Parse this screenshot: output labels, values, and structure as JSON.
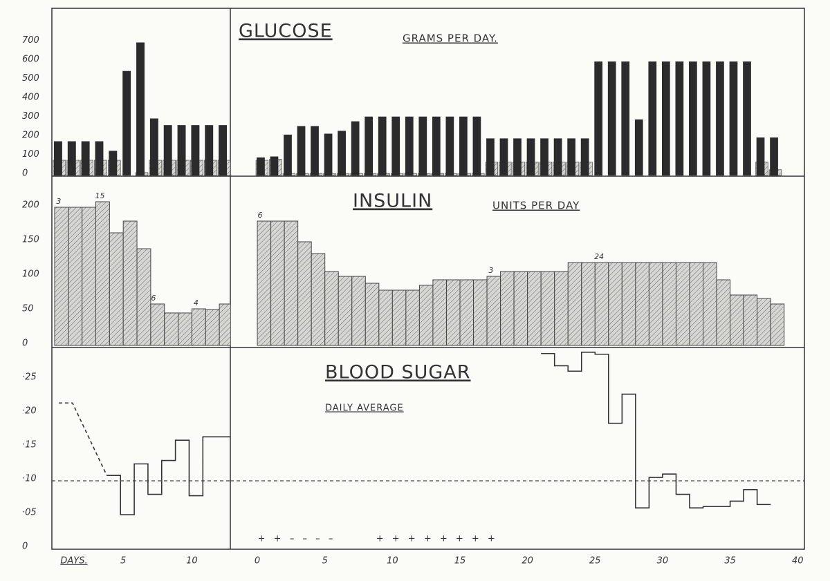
{
  "chart_data": [
    {
      "type": "bar",
      "xlim": [
        -0.2,
        12.8
      ],
      "ylim": [
        0,
        880
      ],
      "yticks": [
        0,
        100,
        200,
        300,
        400,
        500,
        600,
        700
      ],
      "series": [
        {
          "style": "hatched",
          "color": "#555555",
          "x": [
            0,
            1,
            2,
            3,
            4,
            5,
            6,
            7,
            8,
            9,
            10,
            11,
            12
          ],
          "values": [
            80,
            80,
            80,
            80,
            80,
            0,
            15,
            80,
            80,
            80,
            80,
            80,
            80
          ]
        },
        {
          "style": "solid",
          "color": "#2b2b2b",
          "x": [
            0,
            1,
            2,
            3,
            4,
            5,
            6,
            7,
            8,
            9,
            10,
            11,
            12
          ],
          "values": [
            180,
            180,
            180,
            180,
            130,
            550,
            700,
            300,
            265,
            265,
            265,
            265,
            265
          ]
        }
      ]
    },
    {
      "type": "bar",
      "title": "GLUCOSE",
      "subtitle": "GRAMS PER DAY.",
      "xlim": [
        -2,
        40.5
      ],
      "ylim": [
        0,
        880
      ],
      "series": [
        {
          "style": "hatched",
          "color": "#555555",
          "x": [
            0,
            1,
            2,
            3,
            4,
            5,
            6,
            7,
            8,
            9,
            10,
            11,
            12,
            13,
            14,
            15,
            16,
            17,
            18,
            19,
            20,
            21,
            22,
            23,
            24,
            25,
            26,
            27,
            28,
            29,
            30,
            31,
            32,
            33,
            34,
            35,
            36,
            37,
            38
          ],
          "values": [
            80,
            85,
            10,
            10,
            10,
            10,
            10,
            10,
            10,
            10,
            10,
            10,
            10,
            10,
            10,
            10,
            10,
            70,
            70,
            70,
            70,
            70,
            70,
            70,
            70,
            0,
            0,
            0,
            0,
            0,
            0,
            0,
            0,
            0,
            0,
            0,
            0,
            70,
            30
          ]
        },
        {
          "style": "solid",
          "color": "#2b2b2b",
          "x": [
            0,
            1,
            2,
            3,
            4,
            5,
            6,
            7,
            8,
            9,
            10,
            11,
            12,
            13,
            14,
            15,
            16,
            17,
            18,
            19,
            20,
            21,
            22,
            23,
            24,
            25,
            26,
            27,
            28,
            29,
            30,
            31,
            32,
            33,
            34,
            35,
            36,
            37,
            38
          ],
          "values": [
            95,
            100,
            215,
            260,
            260,
            220,
            235,
            285,
            310,
            310,
            310,
            310,
            310,
            310,
            310,
            310,
            310,
            195,
            195,
            195,
            195,
            195,
            195,
            195,
            195,
            600,
            600,
            600,
            295,
            600,
            600,
            600,
            600,
            600,
            600,
            600,
            600,
            200,
            200
          ]
        }
      ]
    },
    {
      "type": "histogram",
      "xlim": [
        -0.2,
        12.8
      ],
      "ylim": [
        0,
        245
      ],
      "yticks": [
        0,
        50,
        100,
        150,
        200
      ],
      "color": "#444444",
      "bins": [
        0,
        1,
        2,
        3,
        4,
        5,
        6,
        7,
        8,
        9,
        10,
        11,
        12,
        13
      ],
      "values": [
        200,
        200,
        200,
        208,
        163,
        180,
        140,
        60,
        47,
        47,
        53,
        52,
        60
      ],
      "annotations": [
        {
          "text": "3",
          "x": 0.3
        },
        {
          "text": "15",
          "x": 3.3
        },
        {
          "text": "6",
          "x": 7.2
        },
        {
          "text": "4",
          "x": 10.3
        }
      ]
    },
    {
      "type": "histogram",
      "title": "INSULIN",
      "subtitle": "UNITS PER DAY",
      "xlim": [
        -2,
        40.5
      ],
      "ylim": [
        0,
        245
      ],
      "color": "#444444",
      "bins": [
        0,
        1,
        2,
        3,
        4,
        5,
        6,
        7,
        8,
        9,
        10,
        11,
        12,
        13,
        14,
        15,
        16,
        17,
        18,
        19,
        20,
        21,
        22,
        23,
        24,
        25,
        26,
        27,
        28,
        29,
        30,
        31,
        32,
        33,
        34,
        35,
        36,
        37,
        38,
        39
      ],
      "values": [
        180,
        180,
        180,
        150,
        133,
        107,
        100,
        100,
        90,
        80,
        80,
        80,
        87,
        95,
        95,
        95,
        95,
        100,
        107,
        107,
        107,
        107,
        107,
        120,
        120,
        120,
        120,
        120,
        120,
        120,
        120,
        120,
        120,
        120,
        95,
        73,
        73,
        68,
        60
      ],
      "annotations": [
        {
          "text": "6",
          "x": 0.2
        },
        {
          "text": "3",
          "x": 17.3
        },
        {
          "text": "24",
          "x": 25.3
        }
      ]
    },
    {
      "type": "step",
      "xlim": [
        -0.2,
        12.8
      ],
      "ylim": [
        0,
        0.3
      ],
      "xlabel": "DAYS.",
      "xticks": [
        5,
        10
      ],
      "yticks": [
        0,
        {
          "value": 0.05,
          "label": "·05"
        },
        {
          "value": 0.1,
          "label": "·10"
        },
        {
          "value": 0.15,
          "label": "·15"
        },
        {
          "value": 0.2,
          "label": "·20"
        },
        {
          "value": 0.25,
          "label": "·25"
        }
      ],
      "reference_line": 0.1,
      "color": "#333333",
      "series": [
        {
          "style": "dashed",
          "x": [
            0.3,
            1.3,
            3.8
          ],
          "values": [
            0.215,
            0.215,
            0.108
          ]
        },
        {
          "style": "step",
          "x": [
            3.8,
            4.8,
            5.8,
            6.8,
            7.8,
            8.8,
            9.8,
            10.8,
            11.8
          ],
          "values": [
            0.108,
            0.05,
            0.125,
            0.08,
            0.13,
            0.16,
            0.078,
            0.165,
            0.165
          ]
        }
      ]
    },
    {
      "type": "step",
      "title": "BLOOD SUGAR",
      "subtitle": "DAILY AVERAGE",
      "xlim": [
        -2,
        40.5
      ],
      "ylim": [
        0,
        0.3
      ],
      "xticks": [
        0,
        5,
        10,
        15,
        20,
        25,
        30,
        35,
        40
      ],
      "reference_line": 0.1,
      "color": "#333333",
      "series": [
        {
          "style": "step",
          "x": [
            21,
            22,
            23,
            24,
            25,
            26,
            27,
            28,
            29,
            30,
            31,
            32,
            33,
            34,
            35,
            36,
            37
          ],
          "values": [
            0.288,
            0.27,
            0.262,
            0.29,
            0.287,
            0.185,
            0.228,
            0.06,
            0.105,
            0.11,
            0.08,
            0.06,
            0.062,
            0.062,
            0.07,
            0.087,
            0.065
          ]
        }
      ],
      "annotations": [
        {
          "text": "+ +",
          "x": 1.0
        },
        {
          "text": "– – – –",
          "x": 4.1
        },
        {
          "text": "+ + + + + + + +",
          "x": 13.3
        }
      ]
    }
  ]
}
